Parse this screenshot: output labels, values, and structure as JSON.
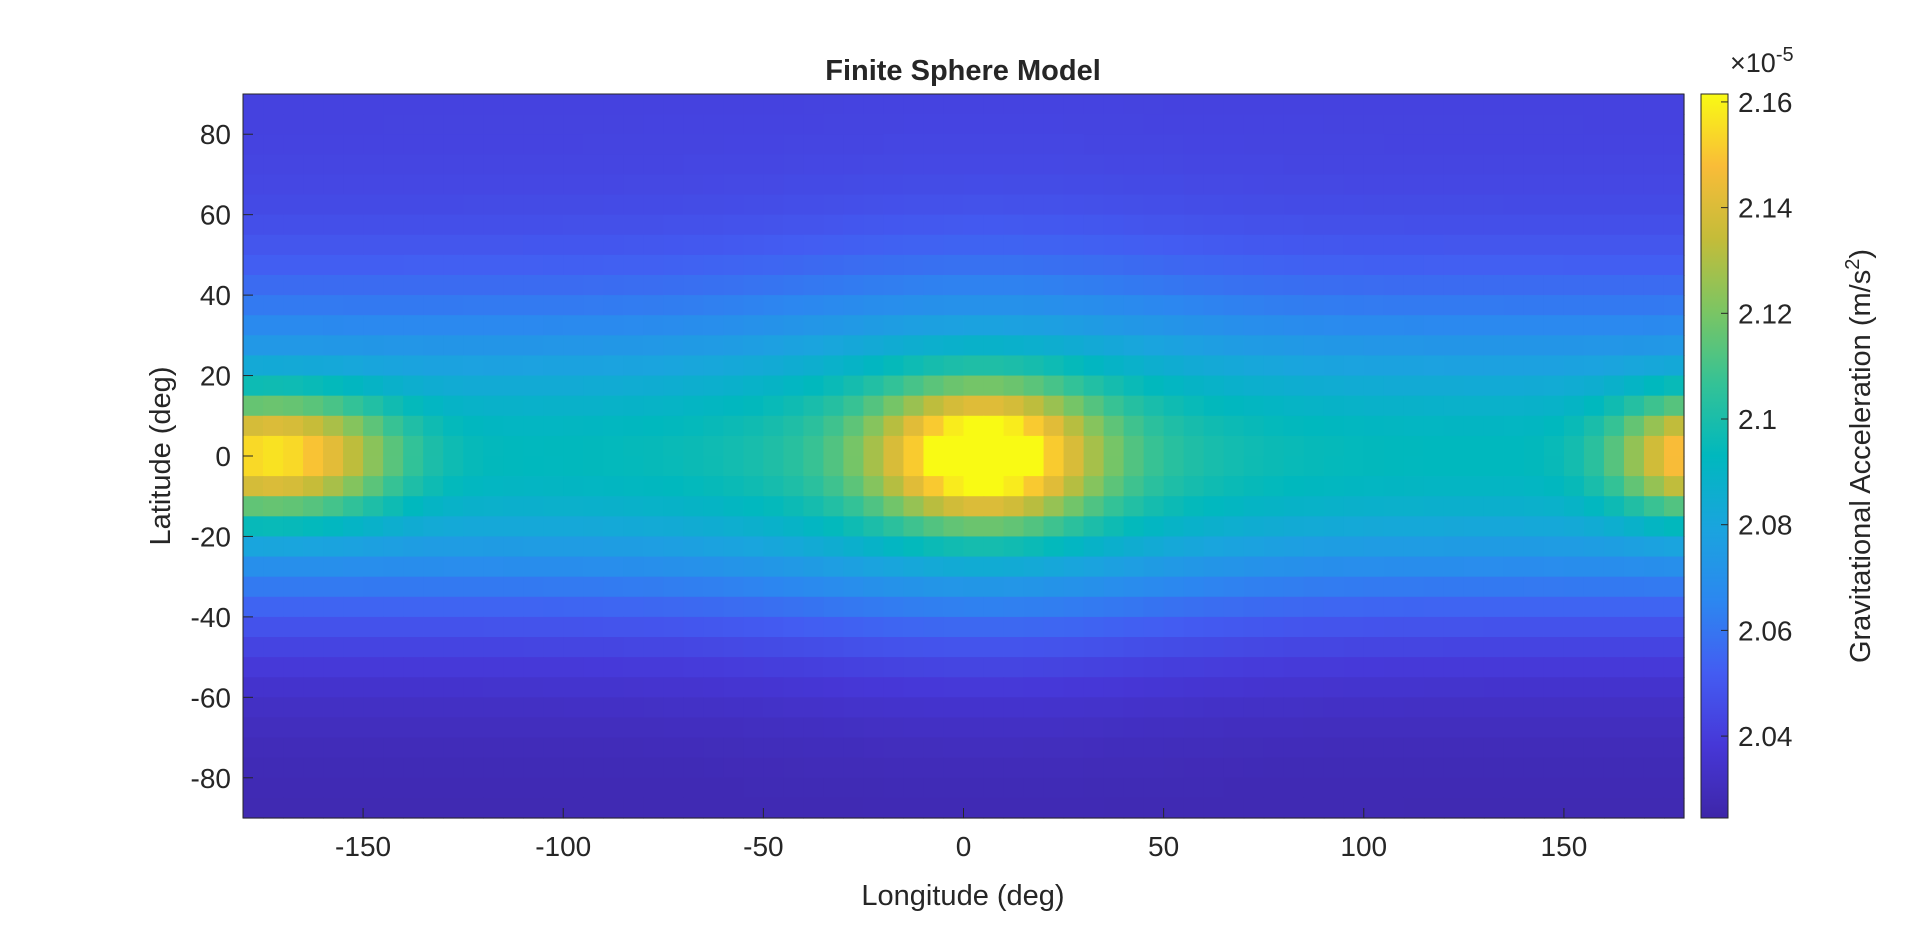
{
  "chart_data": {
    "type": "heatmap",
    "title": "Finite Sphere Model",
    "xlabel": "Longitude (deg)",
    "ylabel": "Latitude (deg)",
    "xlim": [
      -180,
      180
    ],
    "ylim": [
      -90,
      90
    ],
    "xticks": [
      -150,
      -100,
      -50,
      0,
      50,
      100,
      150
    ],
    "yticks": [
      80,
      60,
      40,
      20,
      0,
      -20,
      -40,
      -60,
      -80
    ],
    "grid": false,
    "grid_cells": {
      "lon_count": 72,
      "lat_count": 36
    },
    "colorbar": {
      "label_main": "Gravitational Acceleration (m/s",
      "label_sup": "2",
      "label_end": ")",
      "exponent_prefix": "×10",
      "exponent": "-5",
      "range": [
        2.0245,
        2.1615
      ],
      "ticks": [
        2.04,
        2.06,
        2.08,
        2.1,
        2.12,
        2.14,
        2.16
      ],
      "tick_labels": [
        "2.04",
        "2.06",
        "2.08",
        "2.1",
        "2.12",
        "2.14",
        "2.16"
      ],
      "colormap": "parula"
    },
    "field_features": {
      "base_north_pole": 2.042,
      "base_south_pole": 2.027,
      "equatorial_band_peak": 2.093,
      "main_peak": {
        "lon": 5,
        "lat": 0,
        "value": 2.161
      },
      "west_peak": {
        "lon": -162,
        "lat": 0,
        "value": 2.14
      },
      "east_peak": {
        "lon": 178,
        "lat": 0,
        "value": 2.13
      }
    }
  }
}
